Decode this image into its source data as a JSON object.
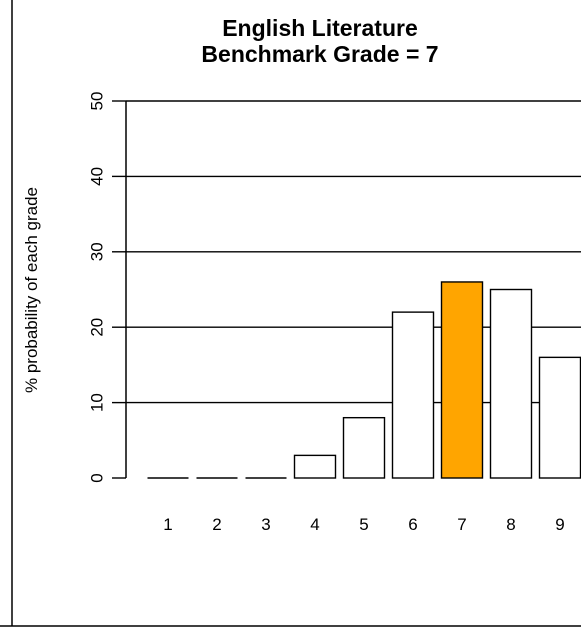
{
  "chart_data": {
    "type": "bar",
    "title": "English Literature",
    "subtitle": "Benchmark Grade = 7",
    "ylabel": "% probability of each grade",
    "xlabel": "",
    "categories": [
      "1",
      "2",
      "3",
      "4",
      "5",
      "6",
      "7",
      "8",
      "9"
    ],
    "values": [
      0,
      0,
      0,
      3,
      8,
      22,
      26,
      25,
      16
    ],
    "highlight_category": "7",
    "ylim": [
      0,
      50
    ],
    "yticks": [
      0,
      10,
      20,
      30,
      40,
      50
    ],
    "grid": "horizontal",
    "legend": "none",
    "colors": {
      "highlight": "#FFA500",
      "bar": "#FFFFFF",
      "stroke": "#000000"
    }
  }
}
